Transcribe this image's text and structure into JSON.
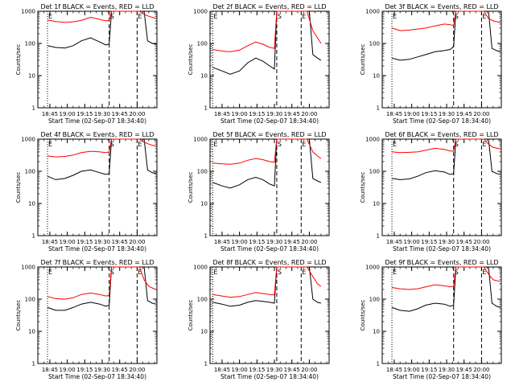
{
  "colors": {
    "events": "#000000",
    "lld": "#ff0000",
    "axes": "#000000",
    "background": "#ffffff"
  },
  "chart_data": [
    {
      "type": "line",
      "title": "Det 1f BLACK = Events, RED = LLD",
      "xlabel": "Start Time (02-Sep-07 18:34:40)",
      "ylabel": "Counts/sec",
      "yscale": "log",
      "ylim": [
        1,
        1000
      ],
      "x_ticks": [
        "18:45",
        "19:00",
        "19:15",
        "19:30",
        "19:45",
        "20:00"
      ],
      "y_ticks": [
        "1",
        "10",
        "100",
        "1000"
      ],
      "markers": [
        {
          "label": "E",
          "time": "18:43"
        },
        {
          "label": "S",
          "time": "19:36"
        },
        {
          "label": "E",
          "time": "20:00"
        }
      ],
      "series": [
        {
          "name": "Events",
          "color": "#000000",
          "x": [
            "18:43",
            "18:50",
            "18:58",
            "19:05",
            "19:12",
            "19:20",
            "19:28",
            "19:33",
            "19:36",
            "19:38",
            "20:06",
            "20:09",
            "20:13",
            "20:16"
          ],
          "values": [
            85,
            75,
            72,
            85,
            120,
            150,
            110,
            90,
            95,
            1000,
            1000,
            120,
            100,
            95
          ]
        },
        {
          "name": "LLD",
          "color": "#ff0000",
          "x": [
            "18:43",
            "18:50",
            "18:58",
            "19:05",
            "19:12",
            "19:20",
            "19:28",
            "19:33",
            "19:36",
            "19:38",
            "20:02",
            "20:06",
            "20:10",
            "20:16"
          ],
          "values": [
            530,
            480,
            450,
            470,
            520,
            650,
            560,
            500,
            520,
            1000,
            1000,
            800,
            700,
            600
          ]
        }
      ]
    },
    {
      "type": "line",
      "title": "Det 2f BLACK = Events, RED = LLD",
      "xlabel": "Start Time (02-Sep-07 18:34:40)",
      "ylabel": "Counts/sec",
      "yscale": "log",
      "ylim": [
        1,
        1000
      ],
      "x_ticks": [
        "18:45",
        "19:00",
        "19:15",
        "19:30",
        "19:45",
        "20:00"
      ],
      "y_ticks": [
        "1",
        "10",
        "100",
        "1000"
      ],
      "markers": [
        {
          "label": "E",
          "time": "18:37"
        },
        {
          "label": "S",
          "time": "19:32"
        },
        {
          "label": "E",
          "time": "19:53"
        }
      ],
      "series": [
        {
          "name": "Events",
          "color": "#000000",
          "x": [
            "18:37",
            "18:45",
            "18:52",
            "19:00",
            "19:07",
            "19:14",
            "19:20",
            "19:26",
            "19:30",
            "19:32",
            "20:00",
            "20:03",
            "20:07",
            "20:10"
          ],
          "values": [
            18,
            14,
            11,
            14,
            25,
            35,
            28,
            20,
            16,
            1000,
            1000,
            45,
            35,
            30
          ]
        },
        {
          "name": "LLD",
          "color": "#ff0000",
          "x": [
            "18:37",
            "18:45",
            "18:52",
            "19:00",
            "19:07",
            "19:14",
            "19:20",
            "19:26",
            "19:30",
            "19:32",
            "19:58",
            "20:03",
            "20:07",
            "20:10"
          ],
          "values": [
            65,
            58,
            55,
            62,
            85,
            110,
            95,
            75,
            70,
            1000,
            1000,
            250,
            150,
            100
          ]
        }
      ]
    },
    {
      "type": "line",
      "title": "Det 3f BLACK = Events, RED = LLD",
      "xlabel": "Start Time (02-Sep-07 18:34:40)",
      "ylabel": "Counts/sec",
      "yscale": "log",
      "ylim": [
        1,
        1000
      ],
      "x_ticks": [
        "18:45",
        "19:00",
        "19:15",
        "19:30",
        "19:45",
        "20:00"
      ],
      "y_ticks": [
        "1",
        "10",
        "100",
        "1000"
      ],
      "markers": [
        {
          "label": "E",
          "time": "18:43"
        },
        {
          "label": "S",
          "time": "19:36"
        },
        {
          "label": "E",
          "time": "20:00"
        }
      ],
      "series": [
        {
          "name": "Events",
          "color": "#000000",
          "x": [
            "18:43",
            "18:50",
            "18:58",
            "19:05",
            "19:12",
            "19:20",
            "19:28",
            "19:33",
            "19:36",
            "19:38",
            "20:06",
            "20:09",
            "20:13",
            "20:16"
          ],
          "values": [
            35,
            30,
            32,
            38,
            45,
            55,
            60,
            65,
            80,
            1000,
            1000,
            70,
            60,
            55
          ]
        },
        {
          "name": "LLD",
          "color": "#ff0000",
          "x": [
            "18:43",
            "18:50",
            "18:58",
            "19:05",
            "19:12",
            "19:20",
            "19:28",
            "19:33",
            "19:36",
            "19:38",
            "20:02",
            "20:06",
            "20:10",
            "20:16"
          ],
          "values": [
            300,
            250,
            260,
            280,
            300,
            350,
            400,
            380,
            360,
            1000,
            1000,
            600,
            500,
            450
          ]
        }
      ]
    },
    {
      "type": "line",
      "title": "Det 4f BLACK = Events, RED = LLD",
      "xlabel": "Start Time (02-Sep-07 18:34:40)",
      "ylabel": "Counts/sec",
      "yscale": "log",
      "ylim": [
        1,
        1000
      ],
      "x_ticks": [
        "18:45",
        "19:00",
        "19:15",
        "19:30",
        "19:45",
        "20:00"
      ],
      "y_ticks": [
        "1",
        "10",
        "100",
        "1000"
      ],
      "markers": [
        {
          "label": "E",
          "time": "18:43"
        },
        {
          "label": "S",
          "time": "19:36"
        },
        {
          "label": "E",
          "time": "20:00"
        }
      ],
      "series": [
        {
          "name": "Events",
          "color": "#000000",
          "x": [
            "18:43",
            "18:50",
            "18:58",
            "19:05",
            "19:12",
            "19:20",
            "19:28",
            "19:33",
            "19:36",
            "19:38",
            "20:06",
            "20:09",
            "20:13",
            "20:16"
          ],
          "values": [
            70,
            55,
            60,
            75,
            100,
            110,
            90,
            80,
            85,
            1000,
            1000,
            110,
            90,
            85
          ]
        },
        {
          "name": "LLD",
          "color": "#ff0000",
          "x": [
            "18:43",
            "18:50",
            "18:58",
            "19:05",
            "19:12",
            "19:20",
            "19:28",
            "19:33",
            "19:36",
            "19:38",
            "20:02",
            "20:06",
            "20:10",
            "20:16"
          ],
          "values": [
            300,
            280,
            290,
            320,
            380,
            420,
            400,
            380,
            400,
            1000,
            1000,
            800,
            700,
            600
          ]
        }
      ]
    },
    {
      "type": "line",
      "title": "Det 5f BLACK = Events, RED = LLD",
      "xlabel": "Start Time (02-Sep-07 18:34:40)",
      "ylabel": "Counts/sec",
      "yscale": "log",
      "ylim": [
        1,
        1000
      ],
      "x_ticks": [
        "18:45",
        "19:00",
        "19:15",
        "19:30",
        "19:45",
        "20:00"
      ],
      "y_ticks": [
        "1",
        "10",
        "100",
        "1000"
      ],
      "markers": [
        {
          "label": "E",
          "time": "18:37"
        },
        {
          "label": "S",
          "time": "19:32"
        },
        {
          "label": "E",
          "time": "19:53"
        }
      ],
      "series": [
        {
          "name": "Events",
          "color": "#000000",
          "x": [
            "18:37",
            "18:45",
            "18:52",
            "19:00",
            "19:07",
            "19:14",
            "19:20",
            "19:26",
            "19:30",
            "19:32",
            "20:00",
            "20:03",
            "20:07",
            "20:10"
          ],
          "values": [
            45,
            35,
            30,
            38,
            55,
            65,
            55,
            40,
            35,
            1000,
            1000,
            60,
            50,
            45
          ]
        },
        {
          "name": "LLD",
          "color": "#ff0000",
          "x": [
            "18:37",
            "18:45",
            "18:52",
            "19:00",
            "19:07",
            "19:14",
            "19:20",
            "19:26",
            "19:30",
            "19:32",
            "19:58",
            "20:03",
            "20:07",
            "20:10"
          ],
          "values": [
            180,
            170,
            165,
            180,
            220,
            250,
            230,
            200,
            190,
            1000,
            1000,
            400,
            300,
            250
          ]
        }
      ]
    },
    {
      "type": "line",
      "title": "Det 6f BLACK = Events, RED = LLD",
      "xlabel": "Start Time (02-Sep-07 18:34:40)",
      "ylabel": "Counts/sec",
      "yscale": "log",
      "ylim": [
        1,
        1000
      ],
      "x_ticks": [
        "18:45",
        "19:00",
        "19:15",
        "19:30",
        "19:45",
        "20:00"
      ],
      "y_ticks": [
        "1",
        "10",
        "100",
        "1000"
      ],
      "markers": [
        {
          "label": "E",
          "time": "18:43"
        },
        {
          "label": "S",
          "time": "19:36"
        },
        {
          "label": "E",
          "time": "20:00"
        }
      ],
      "series": [
        {
          "name": "Events",
          "color": "#000000",
          "x": [
            "18:43",
            "18:50",
            "18:58",
            "19:05",
            "19:12",
            "19:20",
            "19:28",
            "19:33",
            "19:36",
            "19:38",
            "20:06",
            "20:09",
            "20:13",
            "20:16"
          ],
          "values": [
            60,
            55,
            58,
            70,
            90,
            105,
            95,
            80,
            85,
            1000,
            1000,
            100,
            85,
            80
          ]
        },
        {
          "name": "LLD",
          "color": "#ff0000",
          "x": [
            "18:43",
            "18:50",
            "18:58",
            "19:05",
            "19:12",
            "19:20",
            "19:28",
            "19:33",
            "19:36",
            "19:38",
            "20:02",
            "20:06",
            "20:10",
            "20:16"
          ],
          "values": [
            400,
            380,
            390,
            400,
            450,
            520,
            480,
            430,
            420,
            1000,
            1000,
            700,
            550,
            500
          ]
        }
      ]
    },
    {
      "type": "line",
      "title": "Det 7f BLACK = Events, RED = LLD",
      "xlabel": "Start Time (02-Sep-07 18:34:40)",
      "ylabel": "Counts/sec",
      "yscale": "log",
      "ylim": [
        1,
        1000
      ],
      "x_ticks": [
        "18:45",
        "19:00",
        "19:15",
        "19:30",
        "19:45",
        "20:00"
      ],
      "y_ticks": [
        "1",
        "10",
        "100",
        "1000"
      ],
      "markers": [
        {
          "label": "E",
          "time": "18:43"
        },
        {
          "label": "S",
          "time": "19:36"
        },
        {
          "label": "E",
          "time": "20:00"
        }
      ],
      "series": [
        {
          "name": "Events",
          "color": "#000000",
          "x": [
            "18:43",
            "18:50",
            "18:58",
            "19:05",
            "19:12",
            "19:20",
            "19:28",
            "19:33",
            "19:36",
            "19:38",
            "20:06",
            "20:09",
            "20:13",
            "20:16"
          ],
          "values": [
            55,
            45,
            45,
            55,
            70,
            80,
            70,
            60,
            65,
            1000,
            1000,
            90,
            75,
            70
          ]
        },
        {
          "name": "LLD",
          "color": "#ff0000",
          "x": [
            "18:43",
            "18:50",
            "18:58",
            "19:05",
            "19:12",
            "19:20",
            "19:28",
            "19:33",
            "19:36",
            "19:38",
            "20:02",
            "20:06",
            "20:10",
            "20:16"
          ],
          "values": [
            120,
            105,
            100,
            110,
            140,
            155,
            140,
            125,
            130,
            1000,
            1000,
            400,
            250,
            200
          ]
        }
      ]
    },
    {
      "type": "line",
      "title": "Det 8f BLACK = Events, RED = LLD",
      "xlabel": "Start Time (02-Sep-07 18:34:40)",
      "ylabel": "Counts/sec",
      "yscale": "log",
      "ylim": [
        1,
        1000
      ],
      "x_ticks": [
        "18:45",
        "19:00",
        "19:15",
        "19:30",
        "19:45",
        "20:00"
      ],
      "y_ticks": [
        "1",
        "10",
        "100",
        "1000"
      ],
      "markers": [
        {
          "label": "E",
          "time": "18:37"
        },
        {
          "label": "S",
          "time": "19:32"
        },
        {
          "label": "E",
          "time": "19:53"
        }
      ],
      "series": [
        {
          "name": "Events",
          "color": "#000000",
          "x": [
            "18:37",
            "18:45",
            "18:52",
            "19:00",
            "19:07",
            "19:14",
            "19:20",
            "19:26",
            "19:30",
            "19:32",
            "20:00",
            "20:03",
            "20:07",
            "20:10"
          ],
          "values": [
            80,
            70,
            60,
            65,
            80,
            90,
            85,
            80,
            75,
            1000,
            1000,
            100,
            80,
            75
          ]
        },
        {
          "name": "LLD",
          "color": "#ff0000",
          "x": [
            "18:37",
            "18:45",
            "18:52",
            "19:00",
            "19:07",
            "19:14",
            "19:20",
            "19:26",
            "19:30",
            "19:32",
            "19:58",
            "20:03",
            "20:07",
            "20:10"
          ],
          "values": [
            140,
            125,
            115,
            120,
            140,
            160,
            150,
            140,
            135,
            1000,
            1000,
            500,
            300,
            250
          ]
        }
      ]
    },
    {
      "type": "line",
      "title": "Det 9f BLACK = Events, RED = LLD",
      "xlabel": "Start Time (02-Sep-07 18:34:40)",
      "ylabel": "Counts/sec",
      "yscale": "log",
      "ylim": [
        1,
        1000
      ],
      "x_ticks": [
        "18:45",
        "19:00",
        "19:15",
        "19:30",
        "19:45",
        "20:00"
      ],
      "y_ticks": [
        "1",
        "10",
        "100",
        "1000"
      ],
      "markers": [
        {
          "label": "E",
          "time": "18:43"
        },
        {
          "label": "S",
          "time": "19:36"
        },
        {
          "label": "E",
          "time": "20:00"
        }
      ],
      "series": [
        {
          "name": "Events",
          "color": "#000000",
          "x": [
            "18:43",
            "18:50",
            "18:58",
            "19:05",
            "19:12",
            "19:20",
            "19:28",
            "19:33",
            "19:36",
            "19:38",
            "20:06",
            "20:09",
            "20:13",
            "20:16"
          ],
          "values": [
            55,
            45,
            42,
            50,
            65,
            75,
            70,
            60,
            65,
            1000,
            1000,
            75,
            60,
            55
          ]
        },
        {
          "name": "LLD",
          "color": "#ff0000",
          "x": [
            "18:43",
            "18:50",
            "18:58",
            "19:05",
            "19:12",
            "19:20",
            "19:28",
            "19:33",
            "19:36",
            "19:38",
            "20:02",
            "20:06",
            "20:10",
            "20:16"
          ],
          "values": [
            230,
            210,
            200,
            210,
            240,
            280,
            260,
            240,
            250,
            1000,
            1000,
            600,
            400,
            350
          ]
        }
      ]
    }
  ]
}
